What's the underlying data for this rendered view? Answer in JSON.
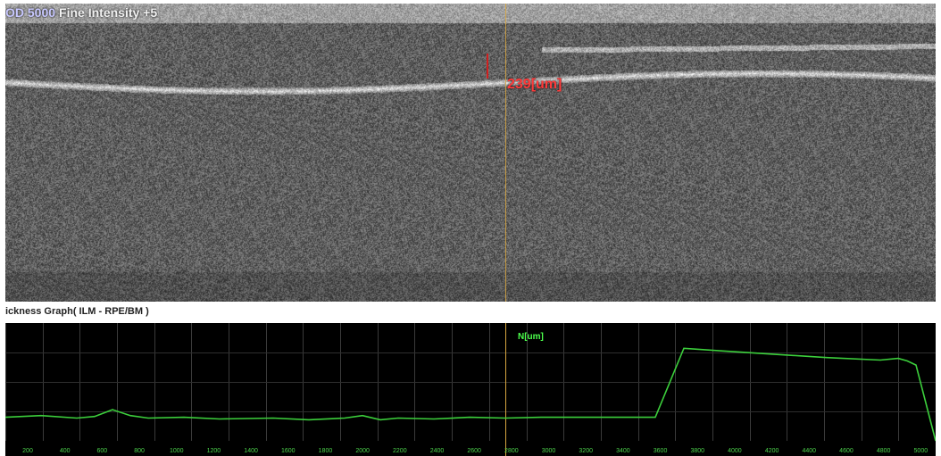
{
  "scan_header": {
    "id": "OD 5000",
    "mode": "Fine Intensity +5"
  },
  "measurement": {
    "thickness_value": "239[um]"
  },
  "graph": {
    "title": "ickness Graph( ILM - RPE/BM )",
    "cursor_label": "N[um]",
    "line_color": "#3ccf3c",
    "cursor_color": "#d8a640",
    "x_tick_labels": [
      "200",
      "400",
      "600",
      "800",
      "1000",
      "1200",
      "1400",
      "1600",
      "1800",
      "2000",
      "2200",
      "2400",
      "2600",
      "2800",
      "3000",
      "3200",
      "3400",
      "3600",
      "3800",
      "4000",
      "4200",
      "4400",
      "4600",
      "4800",
      "5000"
    ]
  },
  "chart_data": {
    "type": "line",
    "title": "ickness Graph( ILM - RPE/BM )",
    "xlabel": "",
    "ylabel": "",
    "x": [
      0,
      40,
      80,
      100,
      120,
      140,
      160,
      200,
      240,
      300,
      340,
      380,
      400,
      420,
      440,
      480,
      520,
      560,
      600,
      640,
      680,
      720,
      728,
      760,
      800,
      860,
      920,
      980,
      1000,
      1010,
      1020,
      1042
    ],
    "values": [
      28,
      30,
      27,
      29,
      37,
      30,
      27,
      28,
      26,
      27,
      25,
      27,
      30,
      25,
      27,
      26,
      28,
      27,
      28,
      28,
      28,
      28,
      28,
      110,
      107,
      103,
      99,
      96,
      98,
      95,
      90,
      0
    ],
    "grid": true
  }
}
